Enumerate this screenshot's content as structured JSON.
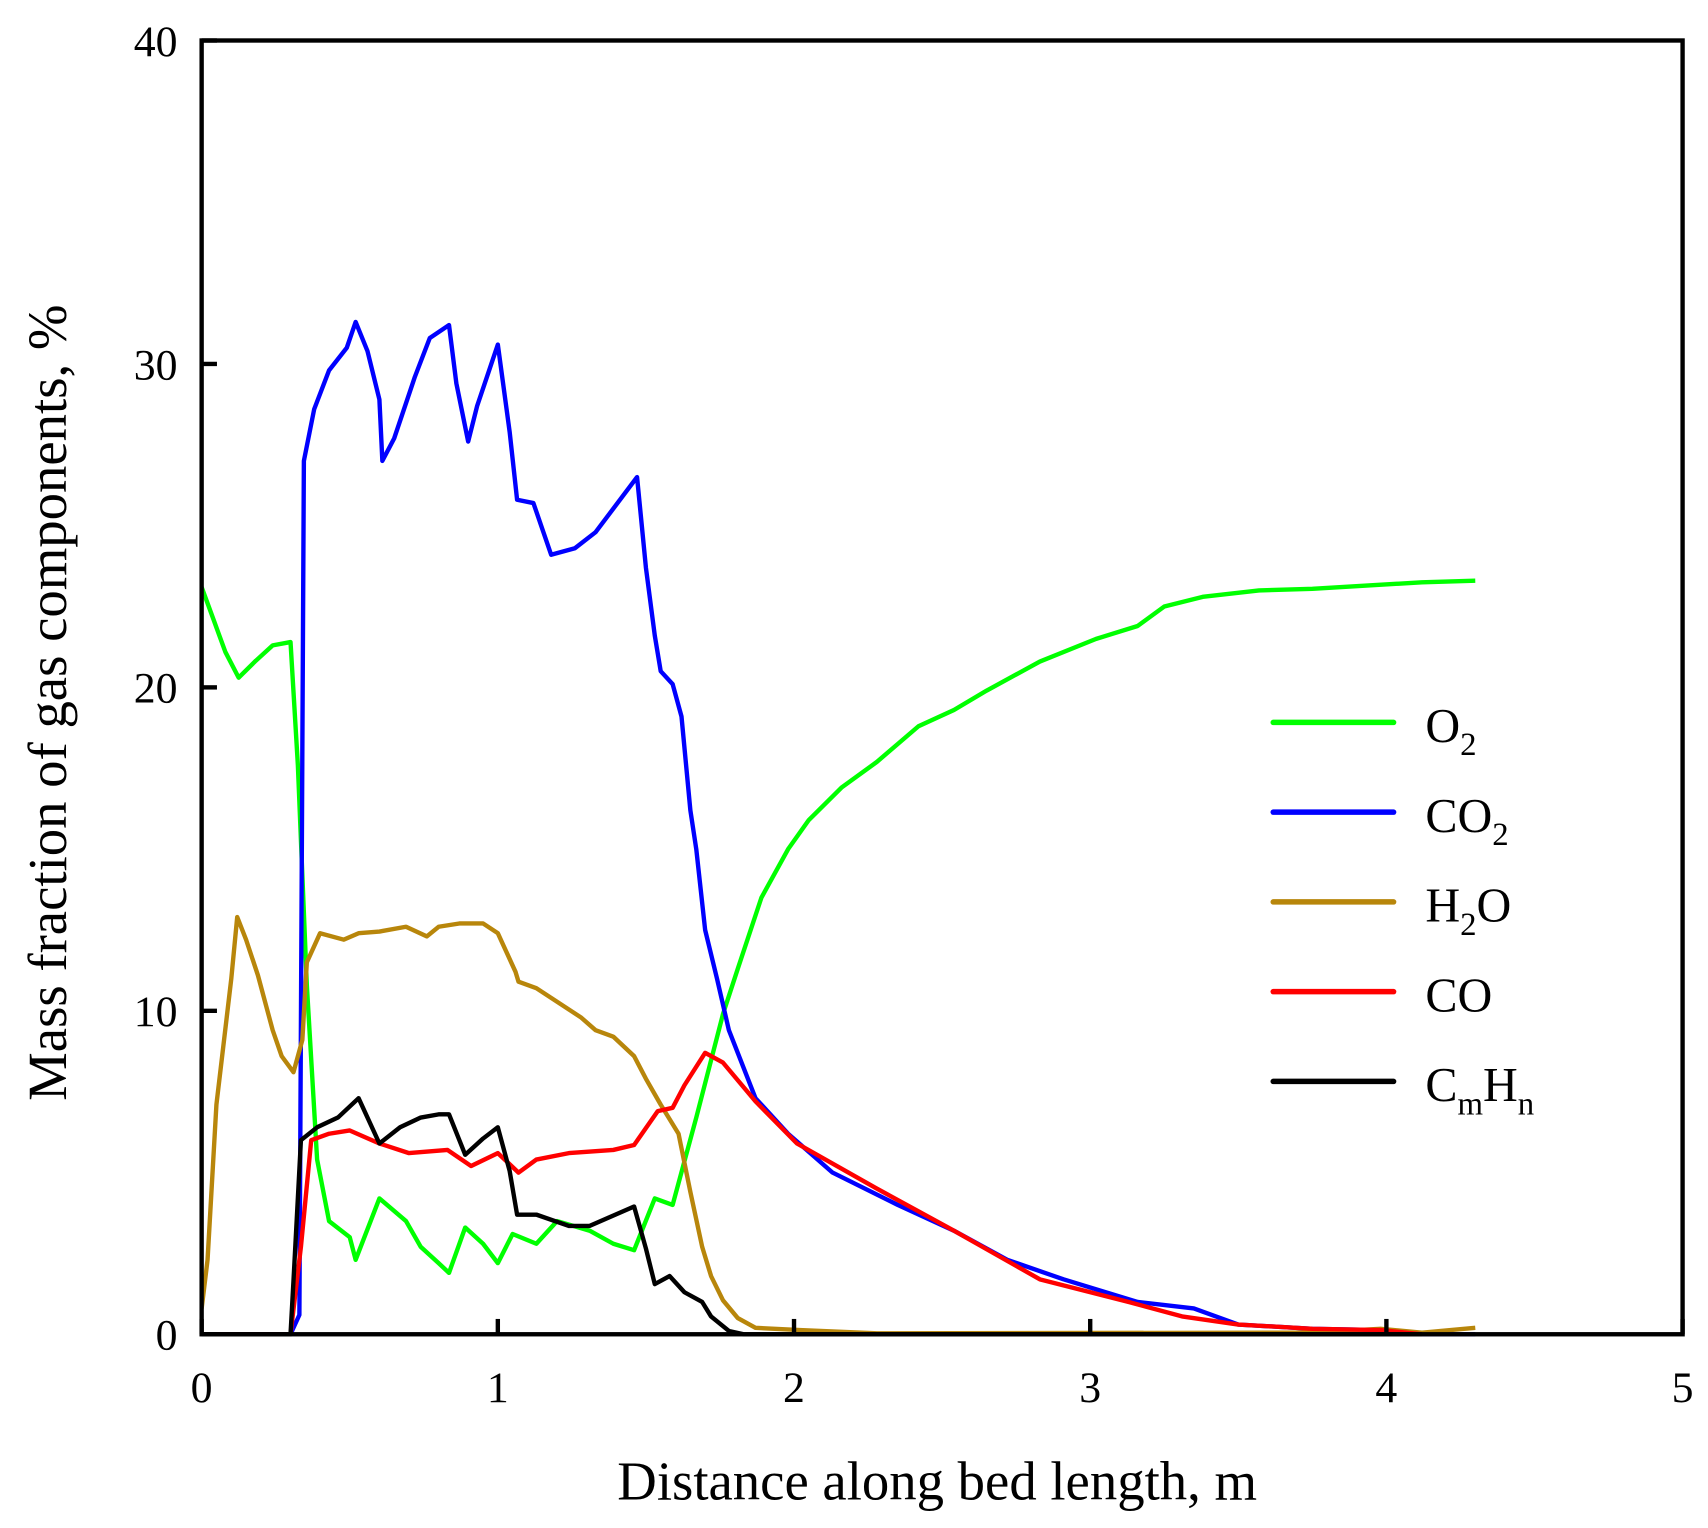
{
  "chart_data": {
    "type": "line",
    "title": "",
    "xlabel": "Distance along bed length, m",
    "ylabel": "Mass fraction of gas components, %",
    "xlim": [
      0,
      5
    ],
    "ylim": [
      0,
      40
    ],
    "xticks": [
      0,
      1,
      2,
      3,
      4,
      5
    ],
    "yticks": [
      0,
      10,
      20,
      30,
      40
    ],
    "grid": false,
    "legend_position": "right-middle",
    "series": [
      {
        "name": "O2",
        "label_main": "O",
        "label_sub": "2",
        "label_tail": "",
        "color": "#00ff00",
        "x": [
          0,
          0.04,
          0.08,
          0.125,
          0.18,
          0.24,
          0.3,
          0.325,
          0.355,
          0.39,
          0.43,
          0.5,
          0.52,
          0.6,
          0.69,
          0.74,
          0.8,
          0.835,
          0.89,
          0.95,
          1.0,
          1.05,
          1.13,
          1.2,
          1.31,
          1.39,
          1.46,
          1.53,
          1.59,
          1.67,
          1.76,
          1.81,
          1.89,
          1.98,
          2.05,
          2.16,
          2.28,
          2.42,
          2.54,
          2.65,
          2.83,
          3.02,
          3.16,
          3.25,
          3.38,
          3.57,
          3.75,
          3.94,
          4.12,
          4.3
        ],
        "y": [
          23.1,
          22.1,
          21.1,
          20.3,
          20.8,
          21.3,
          21.4,
          17.6,
          10.8,
          5.4,
          3.5,
          3.0,
          2.3,
          4.2,
          3.5,
          2.7,
          2.2,
          1.9,
          3.3,
          2.8,
          2.2,
          3.1,
          2.8,
          3.5,
          3.2,
          2.8,
          2.6,
          4.2,
          4.0,
          6.7,
          9.9,
          11.3,
          13.5,
          15.0,
          15.9,
          16.9,
          17.7,
          18.8,
          19.3,
          19.9,
          20.8,
          21.5,
          21.9,
          22.5,
          22.8,
          23.0,
          23.05,
          23.15,
          23.25,
          23.3
        ]
      },
      {
        "name": "CO2",
        "label_main": "CO",
        "label_sub": "2",
        "label_tail": "",
        "color": "#0000ff",
        "x": [
          0,
          0.3,
          0.33,
          0.345,
          0.38,
          0.43,
          0.49,
          0.52,
          0.56,
          0.6,
          0.61,
          0.65,
          0.72,
          0.77,
          0.835,
          0.86,
          0.9,
          0.93,
          1.0,
          1.04,
          1.065,
          1.12,
          1.18,
          1.26,
          1.33,
          1.47,
          1.5,
          1.53,
          1.55,
          1.59,
          1.62,
          1.65,
          1.67,
          1.7,
          1.74,
          1.78,
          1.87,
          1.98,
          2.13,
          2.35,
          2.54,
          2.72,
          2.91,
          3.16,
          3.35,
          3.5,
          3.75,
          3.98,
          4.12,
          4.3
        ],
        "y": [
          0,
          0,
          0.6,
          27.0,
          28.6,
          29.8,
          30.5,
          31.3,
          30.4,
          28.9,
          27.0,
          27.7,
          29.6,
          30.8,
          31.2,
          29.4,
          27.6,
          28.7,
          30.6,
          27.9,
          25.8,
          25.7,
          24.1,
          24.3,
          24.8,
          26.5,
          23.7,
          21.6,
          20.5,
          20.1,
          19.1,
          16.2,
          15.0,
          12.5,
          11.0,
          9.4,
          7.3,
          6.2,
          5.0,
          4.0,
          3.2,
          2.3,
          1.7,
          1.0,
          0.8,
          0.3,
          0.17,
          0.13,
          0,
          0
        ]
      },
      {
        "name": "H2O",
        "label_main": "H",
        "label_sub": "2",
        "label_tail": "O",
        "color": "#b8860b",
        "x": [
          0,
          0.02,
          0.05,
          0.1,
          0.12,
          0.15,
          0.19,
          0.24,
          0.27,
          0.31,
          0.34,
          0.355,
          0.4,
          0.48,
          0.53,
          0.6,
          0.69,
          0.76,
          0.8,
          0.87,
          0.95,
          1.0,
          1.06,
          1.07,
          1.13,
          1.28,
          1.33,
          1.39,
          1.46,
          1.5,
          1.55,
          1.61,
          1.65,
          1.69,
          1.72,
          1.76,
          1.81,
          1.87,
          2.02,
          2.28,
          3.75,
          3.98,
          4.12,
          4.3
        ],
        "y": [
          0.8,
          2.3,
          7.1,
          11.0,
          12.9,
          12.2,
          11.1,
          9.4,
          8.6,
          8.1,
          9.1,
          11.5,
          12.4,
          12.2,
          12.4,
          12.45,
          12.6,
          12.3,
          12.6,
          12.7,
          12.7,
          12.4,
          11.2,
          10.9,
          10.7,
          9.8,
          9.4,
          9.2,
          8.6,
          7.9,
          7.1,
          6.2,
          4.4,
          2.7,
          1.8,
          1.05,
          0.5,
          0.2,
          0.13,
          0.03,
          0.05,
          0.17,
          0.05,
          0.2
        ]
      },
      {
        "name": "CO",
        "label_main": "CO",
        "label_sub": "",
        "label_tail": "",
        "color": "#ff0000",
        "x": [
          0,
          0.3,
          0.335,
          0.37,
          0.43,
          0.5,
          0.6,
          0.7,
          0.83,
          0.91,
          1.0,
          1.07,
          1.13,
          1.24,
          1.39,
          1.46,
          1.54,
          1.59,
          1.63,
          1.7,
          1.76,
          1.87,
          2.01,
          2.28,
          2.54,
          2.83,
          3.13,
          3.31,
          3.5,
          3.75,
          3.98,
          4.12
        ],
        "y": [
          0,
          0,
          2.7,
          6.0,
          6.2,
          6.3,
          5.9,
          5.6,
          5.7,
          5.2,
          5.6,
          5.0,
          5.4,
          5.6,
          5.7,
          5.85,
          6.9,
          7.0,
          7.7,
          8.7,
          8.4,
          7.2,
          5.9,
          4.5,
          3.2,
          1.7,
          1.0,
          0.55,
          0.3,
          0.17,
          0.13,
          0
        ]
      },
      {
        "name": "CmHn",
        "label_main": "C",
        "label_sub": "m",
        "label_tail": "H",
        "label_sub2": "n",
        "color": "#000000",
        "x": [
          0,
          0.3,
          0.31,
          0.335,
          0.39,
          0.46,
          0.53,
          0.6,
          0.67,
          0.74,
          0.8,
          0.835,
          0.89,
          0.95,
          1.0,
          1.04,
          1.065,
          1.13,
          1.24,
          1.31,
          1.46,
          1.5,
          1.53,
          1.58,
          1.63,
          1.69,
          1.72,
          1.78,
          1.83,
          4.12
        ],
        "y": [
          0,
          0,
          1.65,
          6.0,
          6.4,
          6.7,
          7.3,
          5.9,
          6.4,
          6.7,
          6.8,
          6.8,
          5.55,
          6.05,
          6.4,
          5.05,
          3.7,
          3.7,
          3.35,
          3.35,
          3.95,
          2.65,
          1.55,
          1.8,
          1.3,
          1.0,
          0.55,
          0.1,
          0,
          0
        ]
      }
    ]
  }
}
